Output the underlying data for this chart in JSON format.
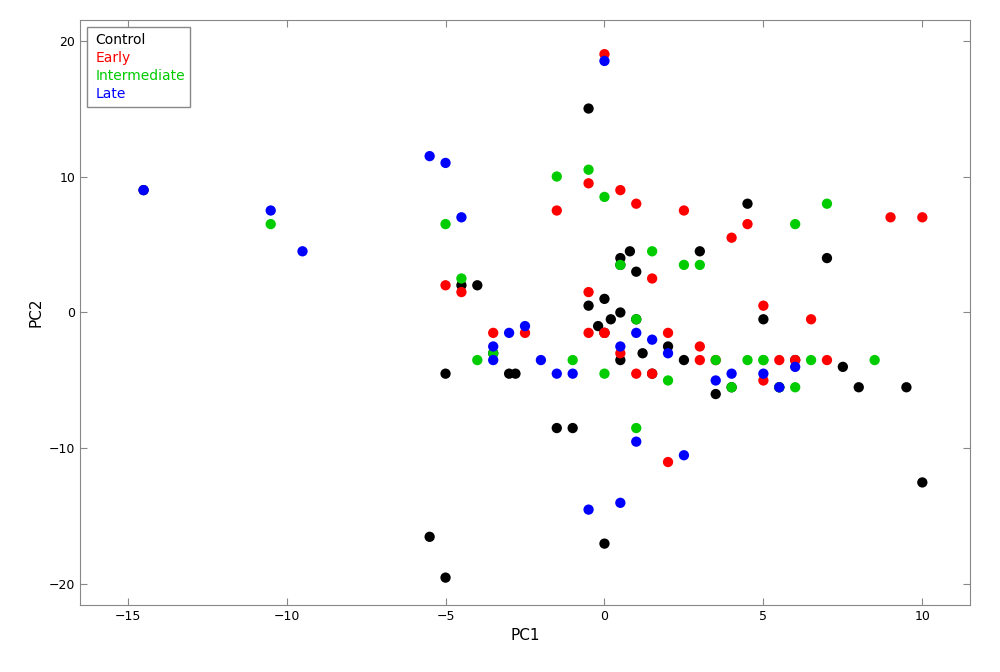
{
  "control": {
    "x": [
      -14.5,
      -5.0,
      -4.5,
      -4.0,
      -3.5,
      -3.0,
      -2.8,
      -1.5,
      -1.0,
      -0.5,
      0.0,
      0.2,
      0.5,
      0.5,
      0.8,
      1.0,
      1.2,
      1.5,
      2.0,
      2.5,
      3.0,
      3.5,
      4.0,
      4.5,
      5.0,
      5.5,
      6.0,
      7.0,
      7.5,
      8.0,
      9.5,
      10.0,
      -5.5,
      -5.0,
      0.0,
      0.5,
      1.0,
      -0.5,
      0.0,
      0.5,
      -0.2
    ],
    "y": [
      9.0,
      -4.5,
      2.0,
      2.0,
      -3.0,
      -4.5,
      -4.5,
      -8.5,
      -8.5,
      15.0,
      -1.5,
      -0.5,
      3.5,
      4.0,
      4.5,
      3.0,
      -3.0,
      -4.5,
      -2.5,
      -3.5,
      4.5,
      -6.0,
      -5.5,
      8.0,
      -0.5,
      -5.5,
      -3.5,
      4.0,
      -4.0,
      -5.5,
      -5.5,
      -12.5,
      -16.5,
      -19.5,
      -17.0,
      -3.5,
      -0.5,
      0.5,
      1.0,
      0.0,
      -1.0
    ],
    "color": "#000000",
    "label": "Control"
  },
  "early": {
    "x": [
      -5.0,
      -4.5,
      -3.5,
      -2.5,
      -1.5,
      -0.5,
      -0.5,
      0.0,
      0.5,
      1.0,
      1.5,
      2.0,
      2.5,
      3.0,
      3.5,
      4.5,
      5.0,
      5.5,
      6.0,
      7.0,
      9.0,
      10.0,
      0.0,
      0.5,
      1.0,
      1.5,
      2.0,
      3.0,
      4.0,
      5.0,
      6.5,
      -0.5,
      0.0
    ],
    "y": [
      2.0,
      1.5,
      -1.5,
      -1.5,
      7.5,
      9.5,
      -1.5,
      19.0,
      9.0,
      8.0,
      2.5,
      -1.5,
      7.5,
      -3.5,
      -3.5,
      6.5,
      -5.0,
      -3.5,
      -3.5,
      -3.5,
      7.0,
      7.0,
      -1.5,
      -3.0,
      -4.5,
      -4.5,
      -11.0,
      -2.5,
      5.5,
      0.5,
      -0.5,
      1.5,
      -1.5
    ],
    "color": "#FF0000",
    "label": "Early"
  },
  "intermediate": {
    "x": [
      -10.5,
      -5.0,
      -4.5,
      -3.5,
      -1.5,
      -0.5,
      0.0,
      0.5,
      1.0,
      1.5,
      2.5,
      3.0,
      3.5,
      4.5,
      5.0,
      5.5,
      6.0,
      6.5,
      7.0,
      8.5,
      -4.0,
      -1.0,
      0.0,
      1.0,
      2.0,
      4.0,
      5.0,
      6.0
    ],
    "y": [
      6.5,
      6.5,
      2.5,
      -3.0,
      10.0,
      10.5,
      8.5,
      3.5,
      -0.5,
      4.5,
      3.5,
      3.5,
      -3.5,
      -3.5,
      -3.5,
      -5.5,
      -5.5,
      -3.5,
      8.0,
      -3.5,
      -3.5,
      -3.5,
      -4.5,
      -8.5,
      -5.0,
      -5.5,
      -3.5,
      6.5
    ],
    "color": "#00CC00",
    "label": "Intermediate"
  },
  "late": {
    "x": [
      -14.5,
      -10.5,
      -9.5,
      -5.5,
      -5.0,
      -4.5,
      -3.5,
      -3.5,
      -3.0,
      -2.5,
      -2.0,
      -1.5,
      -1.0,
      0.0,
      0.5,
      1.0,
      1.5,
      2.0,
      2.5,
      3.5,
      4.0,
      5.0,
      5.5,
      6.0,
      -0.5,
      0.5,
      1.0
    ],
    "y": [
      9.0,
      7.5,
      4.5,
      11.5,
      11.0,
      7.0,
      -2.5,
      -3.5,
      -1.5,
      -1.0,
      -3.5,
      -4.5,
      -4.5,
      18.5,
      -2.5,
      -1.5,
      -2.0,
      -3.0,
      -10.5,
      -5.0,
      -4.5,
      -4.5,
      -5.5,
      -4.0,
      -14.5,
      -14.0,
      -9.5
    ],
    "color": "#0000FF",
    "label": "Late"
  },
  "xlim": [
    -16.5,
    11.5
  ],
  "ylim": [
    -21.5,
    21.5
  ],
  "xticks": [
    -15,
    -10,
    -5,
    0,
    5,
    10
  ],
  "yticks": [
    -20,
    -10,
    0,
    10,
    20
  ],
  "xlabel": "PC1",
  "ylabel": "PC2",
  "marker_size": 55,
  "background_color": "#FFFFFF",
  "spine_color": "#888888",
  "tick_label_fontsize": 9,
  "axis_label_fontsize": 11,
  "legend_fontsize": 10
}
